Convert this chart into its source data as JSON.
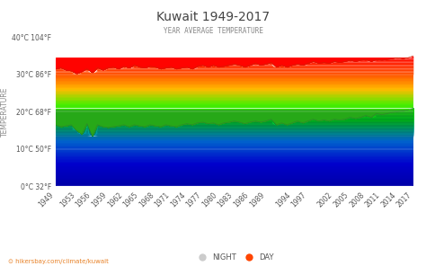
{
  "title": "Kuwait 1949-2017",
  "subtitle": "YEAR AVERAGE TEMPERATURE",
  "years": [
    1949,
    1950,
    1951,
    1952,
    1953,
    1954,
    1955,
    1956,
    1957,
    1958,
    1959,
    1960,
    1961,
    1962,
    1963,
    1964,
    1965,
    1966,
    1967,
    1968,
    1969,
    1970,
    1971,
    1972,
    1973,
    1974,
    1975,
    1976,
    1977,
    1978,
    1979,
    1980,
    1981,
    1982,
    1983,
    1984,
    1985,
    1986,
    1987,
    1988,
    1989,
    1990,
    1991,
    1992,
    1993,
    1994,
    1995,
    1996,
    1997,
    1998,
    1999,
    2000,
    2001,
    2002,
    2003,
    2004,
    2005,
    2006,
    2007,
    2008,
    2009,
    2010,
    2011,
    2012,
    2013,
    2014,
    2015,
    2016,
    2017
  ],
  "day_temps": [
    31.5,
    31.8,
    31.2,
    31.0,
    30.2,
    30.8,
    31.5,
    30.5,
    31.8,
    31.2,
    31.8,
    32.0,
    31.5,
    32.2,
    31.8,
    32.5,
    32.0,
    31.8,
    32.2,
    32.0,
    31.5,
    31.8,
    32.0,
    31.5,
    31.8,
    32.0,
    31.5,
    32.2,
    32.5,
    32.0,
    32.5,
    32.0,
    32.2,
    32.5,
    32.8,
    32.5,
    32.0,
    32.5,
    33.0,
    32.5,
    32.8,
    33.2,
    32.0,
    32.5,
    32.0,
    32.5,
    32.8,
    32.5,
    33.0,
    33.5,
    33.0,
    33.2,
    33.0,
    33.5,
    33.2,
    33.5,
    33.8,
    33.5,
    33.8,
    34.0,
    33.5,
    34.0,
    33.8,
    34.0,
    34.2,
    34.5,
    34.2,
    34.5,
    35.0
  ],
  "night_temps": [
    16.5,
    16.0,
    16.2,
    16.5,
    15.0,
    14.0,
    16.8,
    13.5,
    16.5,
    16.0,
    15.8,
    16.0,
    16.2,
    16.5,
    16.0,
    16.5,
    16.2,
    16.0,
    16.5,
    16.2,
    16.0,
    16.5,
    16.2,
    16.0,
    16.5,
    16.8,
    16.5,
    17.0,
    17.2,
    16.8,
    17.0,
    16.5,
    17.0,
    17.2,
    17.5,
    17.2,
    16.8,
    17.2,
    17.5,
    17.2,
    17.5,
    18.0,
    16.5,
    17.0,
    16.5,
    17.0,
    17.5,
    17.0,
    17.5,
    18.0,
    17.5,
    17.8,
    17.5,
    18.0,
    17.8,
    18.0,
    18.5,
    18.2,
    18.5,
    19.0,
    18.5,
    19.5,
    19.2,
    19.5,
    19.8,
    20.0,
    20.2,
    20.5,
    21.0
  ],
  "ylabel": "TEMPERATURE",
  "yticks_celsius": [
    0,
    10,
    20,
    30,
    40
  ],
  "ytick_labels": [
    "0°C 32°F",
    "10°C 50°F",
    "20°C 68°F",
    "30°C 86°F",
    "40°C 104°F"
  ],
  "xtick_years": [
    1949,
    1953,
    1956,
    1959,
    1962,
    1965,
    1968,
    1971,
    1974,
    1977,
    1980,
    1983,
    1986,
    1989,
    1994,
    1997,
    2002,
    2005,
    2008,
    2011,
    2014,
    2017
  ],
  "ymin": 0,
  "ymax": 40,
  "bg_color": "#ffffff",
  "title_color": "#444444",
  "subtitle_color": "#888888",
  "night_legend_color": "#cccccc",
  "day_legend_color": "#ff4500",
  "watermark": "hikersbay.com/climate/kuwait",
  "watermark_color": "#e8832a"
}
